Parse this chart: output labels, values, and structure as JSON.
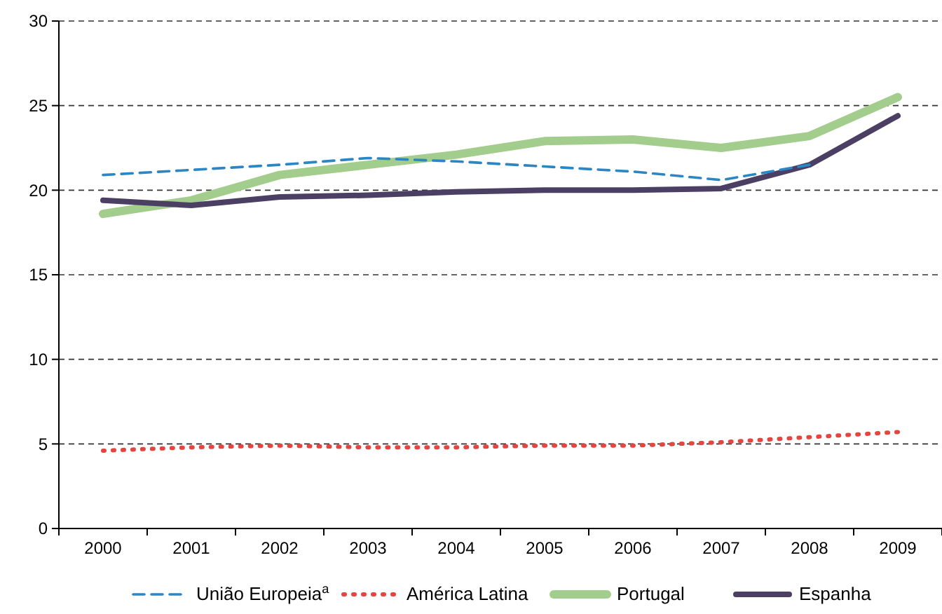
{
  "chart_data": {
    "type": "line",
    "categories": [
      "2000",
      "2001",
      "2002",
      "2003",
      "2004",
      "2005",
      "2006",
      "2007",
      "2008",
      "2009"
    ],
    "series": [
      {
        "name": "União Europeia$^{a}$",
        "color": "#2b86c5",
        "line_style": "dashed",
        "values": [
          20.9,
          21.2,
          21.5,
          21.9,
          21.7,
          21.4,
          21.1,
          20.6,
          21.5,
          null
        ]
      },
      {
        "name": "América Latina",
        "color": "#e4463f",
        "line_style": "dotted",
        "values": [
          4.6,
          4.8,
          4.9,
          4.8,
          4.8,
          4.9,
          4.9,
          5.1,
          5.4,
          5.7
        ]
      },
      {
        "name": "Portugal",
        "color": "#a3cd8c",
        "line_style": "solid",
        "values": [
          18.6,
          19.4,
          20.9,
          21.5,
          22.1,
          22.9,
          23.0,
          22.5,
          23.2,
          25.5
        ]
      },
      {
        "name": "Espanha",
        "color": "#4b3f63",
        "line_style": "solid",
        "values": [
          19.4,
          19.1,
          19.6,
          19.7,
          19.9,
          20.0,
          20.0,
          20.1,
          21.5,
          24.4
        ]
      }
    ],
    "ylim": [
      0,
      30
    ],
    "yticks": [
      0,
      5,
      10,
      15,
      20,
      25,
      30
    ],
    "grid": "y",
    "legend": "bottom"
  }
}
